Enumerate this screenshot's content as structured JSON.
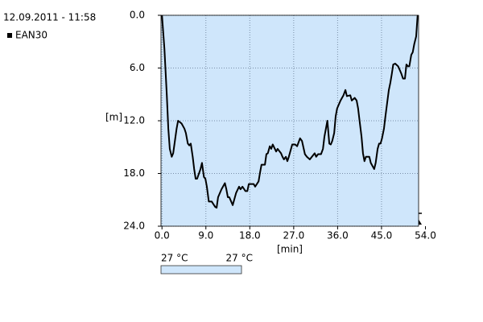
{
  "chart_data": {
    "type": "line",
    "title": "12.09.2011 - 11:58",
    "x_label": "[min]",
    "y_label": "[m]",
    "y_inverted": true,
    "grid": true,
    "legend": "top-left",
    "plot_background": "#cfe6fb",
    "x": [
      0.0,
      0.5,
      1.0,
      1.3,
      1.6,
      2.0,
      2.3,
      3.0,
      3.3,
      4.0,
      4.6,
      4.9,
      5.3,
      5.6,
      5.9,
      6.3,
      6.6,
      6.9,
      7.2,
      7.9,
      8.2,
      8.6,
      8.9,
      9.2,
      9.6,
      10.2,
      10.9,
      11.2,
      11.5,
      12.2,
      12.5,
      12.9,
      13.2,
      13.5,
      13.8,
      14.5,
      15.2,
      15.8,
      16.1,
      16.5,
      17.1,
      17.5,
      17.8,
      18.8,
      19.1,
      19.8,
      20.1,
      20.4,
      21.1,
      21.4,
      21.7,
      22.1,
      22.4,
      22.7,
      23.4,
      23.7,
      24.4,
      24.7,
      25.0,
      25.4,
      25.7,
      26.0,
      26.7,
      27.3,
      27.7,
      28.3,
      28.7,
      29.3,
      29.7,
      30.3,
      31.3,
      31.6,
      32.0,
      32.6,
      33.0,
      33.3,
      33.9,
      34.3,
      34.6,
      34.9,
      35.3,
      35.6,
      35.9,
      36.6,
      37.2,
      37.6,
      37.9,
      38.6,
      38.9,
      39.5,
      39.9,
      40.2,
      40.5,
      40.9,
      41.2,
      41.5,
      41.8,
      42.5,
      42.8,
      43.5,
      43.8,
      44.2,
      44.5,
      44.8,
      45.1,
      45.5,
      45.8,
      46.1,
      46.5,
      46.8,
      47.1,
      47.4,
      47.8,
      48.4,
      48.8,
      49.1,
      49.4,
      49.8,
      50.1,
      50.4,
      50.7,
      51.1,
      51.4,
      51.7,
      52.1,
      52.4
    ],
    "series": [
      {
        "name": "EAN30",
        "color": "#000000",
        "values": [
          0.0,
          3.8,
          9.2,
          12.9,
          15.2,
          16.1,
          15.7,
          12.9,
          12.0,
          12.3,
          12.9,
          13.4,
          14.6,
          14.8,
          14.6,
          16.1,
          17.5,
          18.6,
          18.6,
          17.5,
          16.8,
          18.4,
          18.6,
          19.5,
          21.2,
          21.2,
          21.8,
          21.9,
          20.7,
          19.8,
          19.5,
          19.1,
          19.8,
          20.7,
          20.7,
          21.6,
          20.2,
          19.5,
          19.8,
          19.5,
          20.0,
          20.0,
          19.2,
          19.2,
          19.5,
          18.9,
          17.9,
          17.0,
          17.0,
          15.8,
          15.7,
          14.9,
          15.2,
          14.7,
          15.5,
          15.2,
          15.7,
          16.1,
          16.4,
          16.1,
          16.6,
          16.1,
          14.7,
          14.7,
          14.9,
          14.0,
          14.3,
          15.8,
          16.1,
          16.4,
          15.7,
          16.1,
          15.8,
          15.8,
          15.2,
          13.8,
          12.0,
          14.6,
          14.7,
          14.3,
          13.4,
          11.5,
          10.6,
          9.7,
          9.1,
          8.5,
          9.2,
          9.1,
          9.7,
          9.4,
          9.7,
          10.6,
          12.0,
          13.8,
          15.7,
          16.6,
          16.1,
          16.1,
          16.8,
          17.5,
          16.8,
          15.2,
          14.6,
          14.6,
          14.0,
          12.9,
          11.5,
          10.2,
          8.5,
          7.7,
          6.7,
          5.6,
          5.5,
          5.8,
          6.3,
          6.7,
          7.2,
          7.2,
          5.6,
          5.8,
          5.8,
          4.5,
          4.2,
          3.3,
          2.4,
          0.0
        ]
      }
    ],
    "xlim": [
      -0.2,
      52.6
    ],
    "ylim": [
      0,
      24
    ],
    "xticks": [
      {
        "value": 0,
        "label": "0.0"
      },
      {
        "value": 9,
        "label": "9.0"
      },
      {
        "value": 18,
        "label": "18.0"
      },
      {
        "value": 27,
        "label": "27.0"
      },
      {
        "value": 36,
        "label": "36.0"
      },
      {
        "value": 45,
        "label": "45.0"
      },
      {
        "value": 54,
        "label": "54.0"
      }
    ],
    "yticks": [
      {
        "value": 0,
        "label": "0.0"
      },
      {
        "value": 6,
        "label": "6.0"
      },
      {
        "value": 12,
        "label": "12.0"
      },
      {
        "value": 18,
        "label": "18.0"
      },
      {
        "value": 24,
        "label": "24.0"
      }
    ],
    "temperature_scale": {
      "min_label": "27 °C",
      "max_label": "27 °C"
    }
  }
}
